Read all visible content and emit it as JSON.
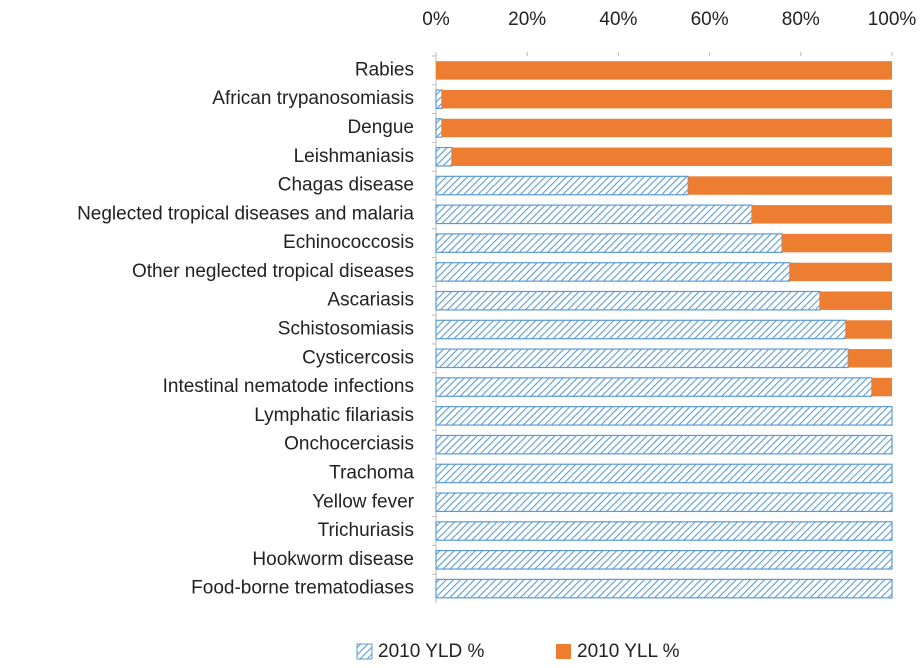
{
  "chart_data": {
    "type": "stacked_barh",
    "categories": [
      "Rabies",
      "African trypanosomiasis",
      "Dengue",
      "Leishmaniasis",
      "Chagas disease",
      "Neglected tropical diseases and malaria",
      "Echinococcosis",
      "Other neglected tropical diseases",
      "Ascariasis",
      "Schistosomiasis",
      "Cysticercosis",
      "Intestinal nematode infections",
      "Lymphatic filariasis",
      "Onchocerciasis",
      "Trachoma",
      "Yellow fever",
      "Trichuriasis",
      "Hookworm disease",
      "Food-borne trematodiases"
    ],
    "series": [
      {
        "name": "2010 YLD %",
        "color": "#5b9bd5",
        "pattern": "hatch",
        "values": [
          0,
          1.3,
          1.3,
          3.5,
          55.3,
          69.3,
          75.9,
          77.6,
          84.2,
          89.9,
          90.4,
          95.6,
          100,
          100,
          100,
          100,
          100,
          100,
          100
        ]
      },
      {
        "name": "2010 YLL %",
        "color": "#ed7d31",
        "pattern": "solid",
        "values": [
          100,
          98.7,
          98.7,
          96.5,
          44.7,
          30.7,
          24.1,
          22.4,
          15.8,
          10.1,
          9.6,
          4.4,
          0,
          0,
          0,
          0,
          0,
          0,
          0
        ]
      }
    ],
    "xlim": [
      0,
      100
    ],
    "xticks": [
      {
        "value": 0,
        "label": "0%"
      },
      {
        "value": 20,
        "label": "20%"
      },
      {
        "value": 40,
        "label": "40%"
      },
      {
        "value": 60,
        "label": "60%"
      },
      {
        "value": 80,
        "label": "80%"
      },
      {
        "value": 100,
        "label": "100%"
      }
    ],
    "xaxis_position": "top",
    "legend": "bottom",
    "grid": false
  }
}
